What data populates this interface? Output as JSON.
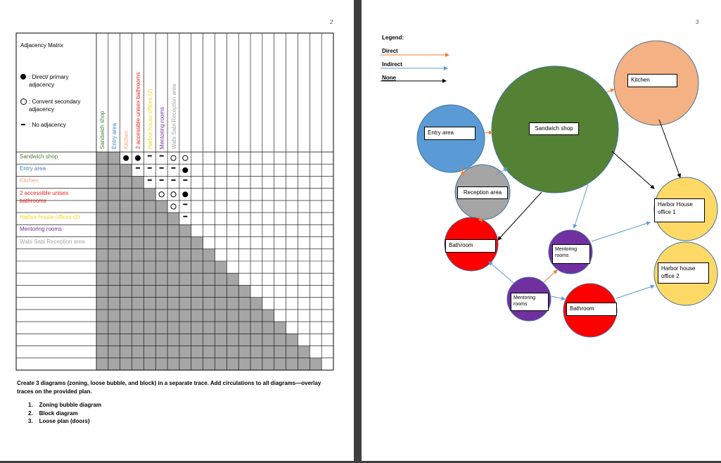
{
  "pages": {
    "left_number": "2",
    "right_number": "3"
  },
  "matrix": {
    "title": "Adjacency Matrix",
    "legend": [
      {
        "symbol": "filled-circle",
        "label": ": Direct/ primary adjacency"
      },
      {
        "symbol": "open-circle",
        "label": ": Convent secondary adjacency"
      },
      {
        "symbol": "dash",
        "label": ": No adjacency"
      }
    ],
    "spaces": [
      {
        "name": "Sandwich shop",
        "color": "#4f7d2e"
      },
      {
        "name": "Entry area",
        "color": "#3f86c6"
      },
      {
        "name": "Kitchen",
        "color": "#f3a27a"
      },
      {
        "name": "2 accessible unisex bathrooms",
        "color": "#e8201e"
      },
      {
        "name": "Harbor house offices (2)",
        "color": "#f2d81a"
      },
      {
        "name": "Mentoring rooms",
        "color": "#7030a0"
      },
      {
        "name": "Wabi Sabi Reception area",
        "color": "#a6a6a6"
      }
    ],
    "cells": [
      {
        "row": 0,
        "col": 1,
        "value": "filled"
      },
      {
        "row": 0,
        "col": 2,
        "value": "filled"
      },
      {
        "row": 0,
        "col": 3,
        "value": "dash"
      },
      {
        "row": 0,
        "col": 4,
        "value": "dash"
      },
      {
        "row": 0,
        "col": 5,
        "value": "open"
      },
      {
        "row": 0,
        "col": 6,
        "value": "open"
      },
      {
        "row": 1,
        "col": 2,
        "value": "dash"
      },
      {
        "row": 1,
        "col": 3,
        "value": "dash"
      },
      {
        "row": 1,
        "col": 4,
        "value": "dash"
      },
      {
        "row": 1,
        "col": 5,
        "value": "dash"
      },
      {
        "row": 1,
        "col": 6,
        "value": "filled"
      },
      {
        "row": 2,
        "col": 3,
        "value": "dash"
      },
      {
        "row": 2,
        "col": 4,
        "value": "dash"
      },
      {
        "row": 2,
        "col": 5,
        "value": "dash"
      },
      {
        "row": 2,
        "col": 6,
        "value": "dash"
      },
      {
        "row": 3,
        "col": 4,
        "value": "open"
      },
      {
        "row": 3,
        "col": 5,
        "value": "open"
      },
      {
        "row": 3,
        "col": 6,
        "value": "filled"
      },
      {
        "row": 4,
        "col": 5,
        "value": "open"
      },
      {
        "row": 4,
        "col": 6,
        "value": "dash"
      },
      {
        "row": 5,
        "col": 6,
        "value": "dash"
      }
    ]
  },
  "instructions": {
    "text": "Create 3 diagrams (zoning, loose bubble, and block) in a separate trace. Add circulations to all diagrams—overlay traces on the provided plan.",
    "items": [
      "1.    Zoning bubble diagram",
      "2.    Block diagram",
      "3.    Loose plan (doors)"
    ]
  },
  "diagram_legend": {
    "title": "Legend:",
    "items": [
      {
        "label": "Direct",
        "color": "#ed7d31"
      },
      {
        "label": "Indirect",
        "color": "#5b9bd5"
      },
      {
        "label": "None",
        "color": "#000000"
      }
    ]
  },
  "bubbles": {
    "sandwich_shop": {
      "label": "Sandwich shop",
      "color": "#548235"
    },
    "kitchen": {
      "label": "Kitchen",
      "color": "#f4b183"
    },
    "entry_area": {
      "label": "Entry area",
      "color": "#5b9bd5"
    },
    "reception_area": {
      "label": "Reception area",
      "color": "#a5a5a5"
    },
    "harbor_office_1": {
      "label": "Harbor House office 1",
      "color": "#ffd966"
    },
    "harbor_office_2": {
      "label": "Harbor house office 2",
      "color": "#ffd966"
    },
    "bathroom_1": {
      "label": "Bathroom",
      "color": "#ff0000"
    },
    "bathroom_2": {
      "label": "Bathroom",
      "color": "#ff0000"
    },
    "mentoring_1": {
      "label": "Mentoring rooms",
      "color": "#7030a0"
    },
    "mentoring_2": {
      "label": "Mentoring rooms",
      "color": "#7030a0"
    }
  }
}
